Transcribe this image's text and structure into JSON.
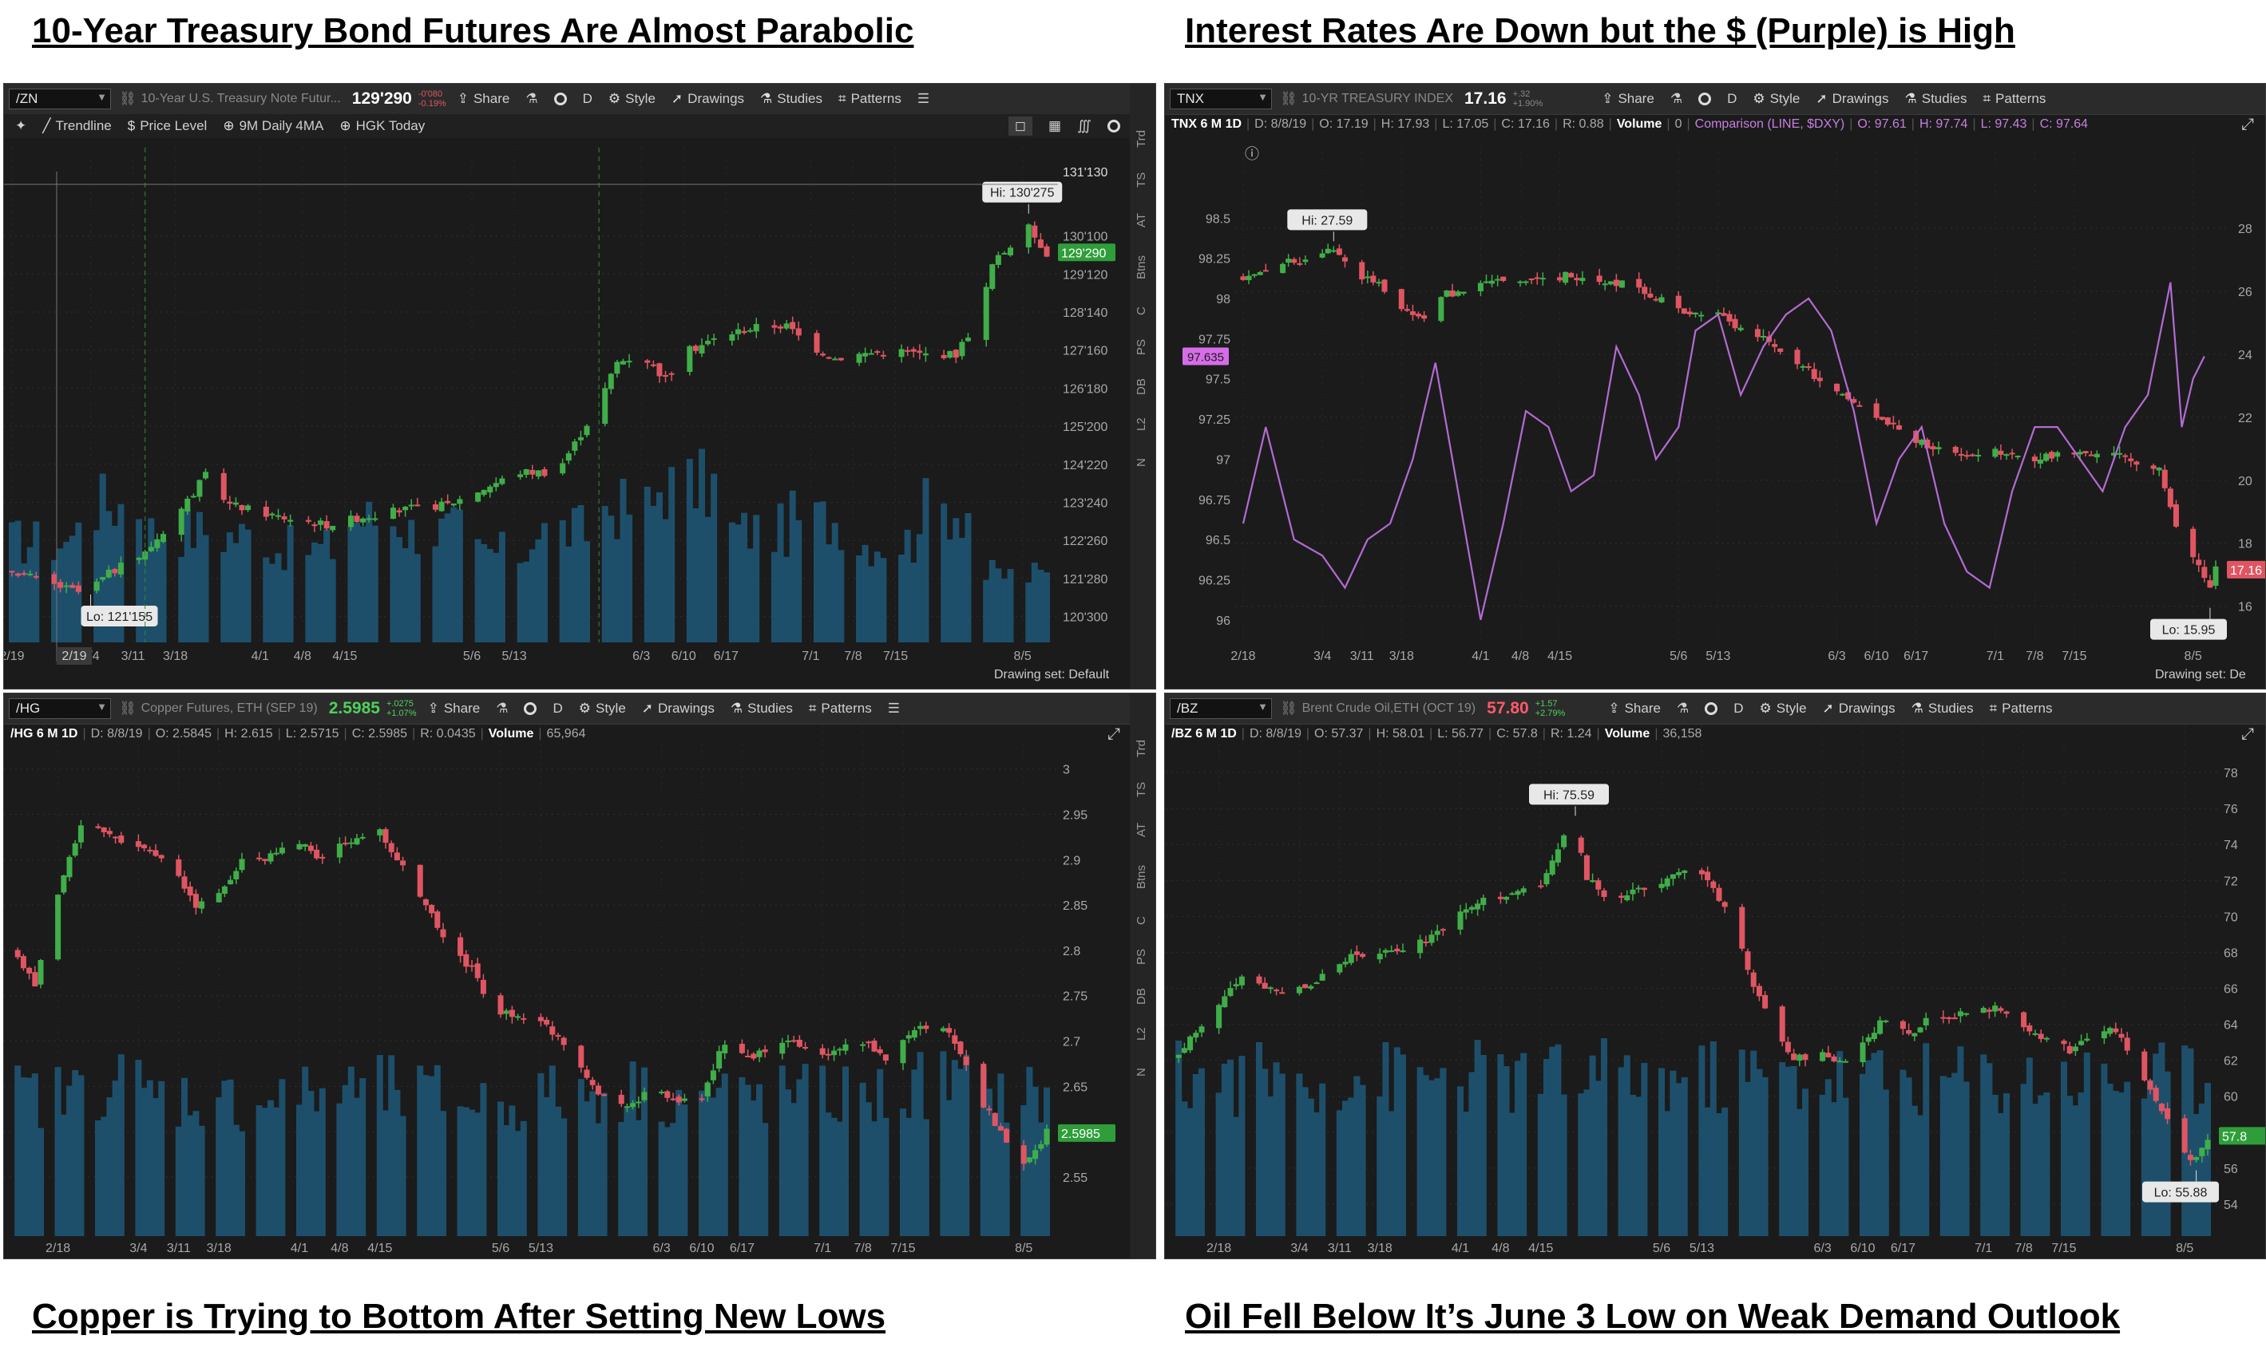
{
  "captions": {
    "top_left": "10-Year Treasury Bond Futures Are Almost Parabolic",
    "top_right": "Interest Rates Are Down but the $ (Purple) is High",
    "bottom_left": "Copper is Trying to Bottom After Setting New Lows",
    "bottom_right": "Oil Fell Below It’s June 3 Low on Weak Demand Outlook"
  },
  "toolbar_common": {
    "share": "Share",
    "period": "D",
    "style": "Style",
    "drawings": "Drawings",
    "studies": "Studies",
    "patterns": "Patterns"
  },
  "sidebar_labels": [
    "Trd",
    "TS",
    "AT",
    "Btns",
    "C",
    "PS",
    "DB",
    "L2",
    "N"
  ],
  "drawing_set": "Drawing set: Default",
  "drawing_set_short": "Drawing set: De",
  "zn": {
    "symbol": "/ZN",
    "description": "10-Year U.S. Treasury Note Futur...",
    "price": "129'290",
    "change_1": "-0'080",
    "change_2": "-0.19%",
    "subtoolbar": [
      "Trendline",
      "Price Level",
      "9M Daily 4MA",
      "HGK Today"
    ],
    "hi_label": "Hi: 130'275",
    "lo_label": "Lo: 121'155",
    "last_price_label": "129'290",
    "hi_axis_label": "131'130",
    "first_date": "2/19"
  },
  "tnx": {
    "symbol": "TNX",
    "description": "10-YR TREASURY INDEX",
    "price": "17.16",
    "change_1": "+.32",
    "change_2": "+1.90%",
    "info": {
      "name": "TNX 6 M 1D",
      "date": "D: 8/8/19",
      "open": "O: 17.19",
      "high": "H: 17.93",
      "low": "L: 17.05",
      "close": "C: 17.16",
      "range": "R: 0.88",
      "volume_label": "Volume",
      "volume": "0",
      "comparison": "Comparison (LINE, $DXY)",
      "c_open": "O: 97.61",
      "c_high": "H: 97.74",
      "c_low": "L: 97.43",
      "c_close": "C: 97.64"
    },
    "hi_label": "Hi: 27.59",
    "lo_label": "Lo: 15.95",
    "last_price_label": "17.16",
    "dxy_last_label": "97.635"
  },
  "hg": {
    "symbol": "/HG",
    "description": "Copper Futures, ETH (SEP 19)",
    "price": "2.5985",
    "change_1": "+.0275",
    "change_2": "+1.07%",
    "info": {
      "name": "/HG 6 M 1D",
      "date": "D: 8/8/19",
      "open": "O: 2.5845",
      "high": "H: 2.615",
      "low": "L: 2.5715",
      "close": "C: 2.5985",
      "range": "R: 0.0435",
      "volume_label": "Volume",
      "volume": "65,964"
    },
    "last_price_label": "2.5985"
  },
  "bz": {
    "symbol": "/BZ",
    "description": "Brent Crude Oil,ETH (OCT 19)",
    "price": "57.80",
    "change_1": "+1.57",
    "change_2": "+2.79%",
    "info": {
      "name": "/BZ 6 M 1D",
      "date": "D: 8/8/19",
      "open": "O: 57.37",
      "high": "H: 58.01",
      "low": "L: 56.77",
      "close": "C: 57.8",
      "range": "R: 1.24",
      "volume_label": "Volume",
      "volume": "36,158"
    },
    "hi_label": "Hi: 75.59",
    "lo_label": "Lo: 55.88",
    "last_price_label": "57.8"
  },
  "colors": {
    "up": "#3fae49",
    "down": "#e05562",
    "volume": "#1d4f6b",
    "comparison": "#b36bd2",
    "background": "#1b1b1b"
  },
  "chart_data": [
    {
      "type": "candlestick",
      "id": "zn",
      "y_ticks": [
        "120'300",
        "121'280",
        "122'260",
        "123'240",
        "124'220",
        "125'200",
        "126'180",
        "127'160",
        "128'140",
        "129'120",
        "130'100"
      ],
      "y_tick_values": [
        120.9375,
        121.875,
        122.8125,
        123.75,
        124.6875,
        125.625,
        126.5625,
        127.5,
        128.4375,
        129.375,
        130.3125
      ],
      "ylim": [
        120.3,
        131.7
      ],
      "x_ticks": [
        "2/19",
        "3/4",
        "3/11",
        "3/18",
        "4/1",
        "4/8",
        "4/15",
        "5/6",
        "5/13",
        "6/3",
        "6/10",
        "6/17",
        "7/1",
        "7/8",
        "7/15",
        "8/5"
      ],
      "x_tick_days": [
        0,
        13,
        20,
        27,
        41,
        48,
        55,
        76,
        83,
        104,
        111,
        118,
        132,
        139,
        146,
        167
      ],
      "last_day": 171,
      "anchors": [
        [
          0,
          122.1
        ],
        [
          5,
          121.8
        ],
        [
          12,
          121.5
        ],
        [
          16,
          122.0
        ],
        [
          22,
          122.5
        ],
        [
          28,
          123.6
        ],
        [
          32,
          124.4
        ],
        [
          36,
          123.7
        ],
        [
          44,
          123.4
        ],
        [
          52,
          123.2
        ],
        [
          58,
          123.4
        ],
        [
          66,
          123.6
        ],
        [
          72,
          123.7
        ],
        [
          78,
          124.1
        ],
        [
          84,
          124.5
        ],
        [
          90,
          124.5
        ],
        [
          93,
          125.2
        ],
        [
          97,
          126.2
        ],
        [
          100,
          127.2
        ],
        [
          104,
          127.4
        ],
        [
          108,
          126.8
        ],
        [
          112,
          127.5
        ],
        [
          118,
          127.9
        ],
        [
          124,
          128.1
        ],
        [
          128,
          128.1
        ],
        [
          132,
          127.6
        ],
        [
          136,
          127.3
        ],
        [
          140,
          127.4
        ],
        [
          146,
          127.5
        ],
        [
          150,
          127.4
        ],
        [
          156,
          127.4
        ],
        [
          160,
          128.4
        ],
        [
          162,
          129.6
        ],
        [
          165,
          130.1
        ],
        [
          168,
          130.5
        ],
        [
          171,
          129.9
        ]
      ],
      "hi": 130.86,
      "lo": 121.48,
      "hi_day": 168,
      "lo_day": 13,
      "last": 129.906,
      "volume_level": [
        0.45,
        0.62,
        0.5,
        0.48,
        0.42,
        0.55,
        0.5,
        0.4,
        0.5,
        0.6,
        0.7,
        0.5,
        0.55,
        0.45,
        0.6,
        0.3
      ]
    },
    {
      "type": "candlestick+line",
      "id": "tnx",
      "y_ticks": [
        "16",
        "18",
        "20",
        "22",
        "24",
        "26",
        "28"
      ],
      "y_tick_values": [
        16,
        18,
        20,
        22,
        24,
        26,
        28
      ],
      "ylim": [
        14.8,
        29.6
      ],
      "secondary_y_ticks": [
        "96",
        "96.25",
        "96.5",
        "96.75",
        "97",
        "97.25",
        "97.5",
        "97.75",
        "98",
        "98.25",
        "98.5"
      ],
      "secondary_y_tick_values": [
        96,
        96.25,
        96.5,
        96.75,
        97,
        97.25,
        97.5,
        97.75,
        98,
        98.25,
        98.5
      ],
      "secondary_ylim": [
        95.85,
        98.75
      ],
      "x_ticks": [
        "2/18",
        "3/4",
        "3/11",
        "3/18",
        "4/1",
        "4/8",
        "4/15",
        "5/6",
        "5/13",
        "6/3",
        "6/10",
        "6/17",
        "7/1",
        "7/8",
        "7/15",
        "8/5"
      ],
      "x_tick_days": [
        0,
        14,
        21,
        28,
        42,
        49,
        56,
        77,
        84,
        105,
        112,
        119,
        133,
        140,
        147,
        168
      ],
      "last_day": 172,
      "anchors": [
        [
          0,
          26.4
        ],
        [
          6,
          26.9
        ],
        [
          12,
          27.0
        ],
        [
          16,
          27.4
        ],
        [
          20,
          26.5
        ],
        [
          24,
          26.3
        ],
        [
          28,
          25.4
        ],
        [
          32,
          25.2
        ],
        [
          36,
          25.9
        ],
        [
          42,
          26.2
        ],
        [
          46,
          26.3
        ],
        [
          52,
          26.4
        ],
        [
          58,
          26.5
        ],
        [
          66,
          26.3
        ],
        [
          72,
          25.9
        ],
        [
          78,
          25.4
        ],
        [
          84,
          25.2
        ],
        [
          90,
          24.7
        ],
        [
          96,
          24.0
        ],
        [
          102,
          23.2
        ],
        [
          108,
          22.5
        ],
        [
          114,
          21.8
        ],
        [
          120,
          21.2
        ],
        [
          126,
          20.8
        ],
        [
          132,
          20.9
        ],
        [
          138,
          20.7
        ],
        [
          144,
          20.8
        ],
        [
          152,
          20.9
        ],
        [
          158,
          20.6
        ],
        [
          162,
          20.3
        ],
        [
          164,
          19.2
        ],
        [
          166,
          18.1
        ],
        [
          169,
          17.2
        ],
        [
          171,
          16.6
        ],
        [
          172,
          17.16
        ]
      ],
      "hi": 27.59,
      "lo": 15.95,
      "hi_day": 16,
      "lo_day": 171,
      "last": 17.16,
      "comparison_series": {
        "name": "$DXY",
        "points": [
          [
            0,
            96.6
          ],
          [
            4,
            97.2
          ],
          [
            9,
            96.5
          ],
          [
            14,
            96.4
          ],
          [
            18,
            96.2
          ],
          [
            22,
            96.5
          ],
          [
            26,
            96.6
          ],
          [
            30,
            97.0
          ],
          [
            34,
            97.6
          ],
          [
            38,
            96.8
          ],
          [
            42,
            96.0
          ],
          [
            46,
            96.6
          ],
          [
            50,
            97.3
          ],
          [
            54,
            97.2
          ],
          [
            58,
            96.8
          ],
          [
            62,
            96.9
          ],
          [
            66,
            97.7
          ],
          [
            70,
            97.4
          ],
          [
            73,
            97.0
          ],
          [
            77,
            97.2
          ],
          [
            80,
            97.8
          ],
          [
            84,
            97.9
          ],
          [
            88,
            97.4
          ],
          [
            92,
            97.7
          ],
          [
            96,
            97.9
          ],
          [
            100,
            98.0
          ],
          [
            104,
            97.8
          ],
          [
            108,
            97.3
          ],
          [
            112,
            96.6
          ],
          [
            116,
            97.0
          ],
          [
            120,
            97.2
          ],
          [
            124,
            96.6
          ],
          [
            128,
            96.3
          ],
          [
            132,
            96.2
          ],
          [
            136,
            96.8
          ],
          [
            140,
            97.2
          ],
          [
            144,
            97.2
          ],
          [
            148,
            97.0
          ],
          [
            152,
            96.8
          ],
          [
            156,
            97.2
          ],
          [
            160,
            97.4
          ],
          [
            164,
            98.1
          ],
          [
            166,
            97.2
          ],
          [
            168,
            97.5
          ],
          [
            170,
            97.64
          ]
        ]
      },
      "volume_level": []
    },
    {
      "type": "candlestick",
      "id": "hg",
      "y_ticks": [
        "2.55",
        "2.6",
        "2.65",
        "2.7",
        "2.75",
        "2.8",
        "2.85",
        "2.9",
        "2.95",
        "3"
      ],
      "y_tick_values": [
        2.55,
        2.6,
        2.65,
        2.7,
        2.75,
        2.8,
        2.85,
        2.9,
        2.95,
        3.0
      ],
      "ylim": [
        2.52,
        3.02
      ],
      "x_ticks": [
        "2/18",
        "3/4",
        "3/11",
        "3/18",
        "4/1",
        "4/8",
        "4/15",
        "5/6",
        "5/13",
        "6/3",
        "6/10",
        "6/17",
        "7/1",
        "7/8",
        "7/15",
        "8/5"
      ],
      "x_tick_days": [
        0,
        14,
        21,
        28,
        42,
        49,
        56,
        77,
        84,
        105,
        112,
        119,
        133,
        140,
        147,
        168
      ],
      "last_day": 172,
      "anchors": [
        [
          -8,
          2.8
        ],
        [
          -4,
          2.76
        ],
        [
          0,
          2.86
        ],
        [
          4,
          2.94
        ],
        [
          8,
          2.93
        ],
        [
          12,
          2.92
        ],
        [
          16,
          2.91
        ],
        [
          20,
          2.89
        ],
        [
          24,
          2.85
        ],
        [
          28,
          2.86
        ],
        [
          32,
          2.9
        ],
        [
          36,
          2.9
        ],
        [
          42,
          2.92
        ],
        [
          46,
          2.9
        ],
        [
          50,
          2.92
        ],
        [
          56,
          2.93
        ],
        [
          60,
          2.89
        ],
        [
          64,
          2.85
        ],
        [
          68,
          2.8
        ],
        [
          72,
          2.78
        ],
        [
          76,
          2.73
        ],
        [
          80,
          2.73
        ],
        [
          84,
          2.72
        ],
        [
          88,
          2.7
        ],
        [
          92,
          2.66
        ],
        [
          96,
          2.63
        ],
        [
          100,
          2.63
        ],
        [
          104,
          2.65
        ],
        [
          108,
          2.63
        ],
        [
          112,
          2.64
        ],
        [
          116,
          2.7
        ],
        [
          120,
          2.68
        ],
        [
          124,
          2.69
        ],
        [
          128,
          2.7
        ],
        [
          132,
          2.68
        ],
        [
          136,
          2.69
        ],
        [
          140,
          2.7
        ],
        [
          144,
          2.68
        ],
        [
          148,
          2.71
        ],
        [
          152,
          2.72
        ],
        [
          156,
          2.7
        ],
        [
          160,
          2.64
        ],
        [
          164,
          2.6
        ],
        [
          167,
          2.56
        ],
        [
          170,
          2.58
        ],
        [
          172,
          2.6
        ]
      ],
      "last": 2.5985,
      "volume_level": [
        0.5,
        0.55,
        0.5,
        0.48,
        0.5,
        0.52,
        0.5,
        0.48,
        0.5,
        0.52,
        0.5,
        0.5,
        0.5,
        0.5,
        0.55,
        0.5
      ]
    },
    {
      "type": "candlestick",
      "id": "bz",
      "y_ticks": [
        "54",
        "56",
        "58",
        "60",
        "62",
        "64",
        "66",
        "68",
        "70",
        "72",
        "74",
        "76",
        "78"
      ],
      "y_tick_values": [
        54,
        56,
        58,
        60,
        62,
        64,
        66,
        68,
        70,
        72,
        74,
        76,
        78
      ],
      "ylim": [
        53.2,
        79.2
      ],
      "x_ticks": [
        "2/18",
        "3/4",
        "3/11",
        "3/18",
        "4/1",
        "4/8",
        "4/15",
        "5/6",
        "5/13",
        "6/3",
        "6/10",
        "6/17",
        "7/1",
        "7/8",
        "7/15",
        "8/5"
      ],
      "x_tick_days": [
        0,
        14,
        21,
        28,
        42,
        49,
        56,
        77,
        84,
        105,
        112,
        119,
        133,
        140,
        147,
        168
      ],
      "last_day": 172,
      "anchors": [
        [
          -8,
          62.2
        ],
        [
          -4,
          63.5
        ],
        [
          0,
          65.0
        ],
        [
          4,
          66.8
        ],
        [
          8,
          66.1
        ],
        [
          12,
          65.7
        ],
        [
          16,
          66.3
        ],
        [
          20,
          67.3
        ],
        [
          24,
          67.8
        ],
        [
          30,
          68.1
        ],
        [
          36,
          68.7
        ],
        [
          42,
          70.1
        ],
        [
          46,
          70.9
        ],
        [
          50,
          71.2
        ],
        [
          56,
          71.7
        ],
        [
          60,
          74.4
        ],
        [
          62,
          74.8
        ],
        [
          64,
          72.2
        ],
        [
          68,
          71.0
        ],
        [
          72,
          71.3
        ],
        [
          76,
          71.6
        ],
        [
          80,
          72.6
        ],
        [
          84,
          72.2
        ],
        [
          88,
          70.6
        ],
        [
          92,
          67.1
        ],
        [
          96,
          63.9
        ],
        [
          100,
          62.0
        ],
        [
          104,
          62.4
        ],
        [
          108,
          61.9
        ],
        [
          112,
          62.9
        ],
        [
          116,
          64.4
        ],
        [
          120,
          63.4
        ],
        [
          124,
          64.6
        ],
        [
          128,
          64.4
        ],
        [
          132,
          64.8
        ],
        [
          136,
          64.9
        ],
        [
          140,
          63.7
        ],
        [
          144,
          63.3
        ],
        [
          148,
          62.5
        ],
        [
          152,
          63.7
        ],
        [
          156,
          63.7
        ],
        [
          160,
          61.5
        ],
        [
          164,
          59.4
        ],
        [
          167,
          57.0
        ],
        [
          170,
          56.5
        ],
        [
          172,
          57.8
        ]
      ],
      "hi": 75.59,
      "lo": 55.88,
      "hi_day": 62,
      "lo_day": 170,
      "last": 57.8,
      "volume_level": [
        0.62,
        0.62,
        0.62,
        0.62,
        0.62,
        0.62,
        0.62,
        0.62,
        0.62,
        0.62,
        0.62,
        0.62,
        0.62,
        0.62,
        0.62,
        0.62
      ]
    }
  ]
}
